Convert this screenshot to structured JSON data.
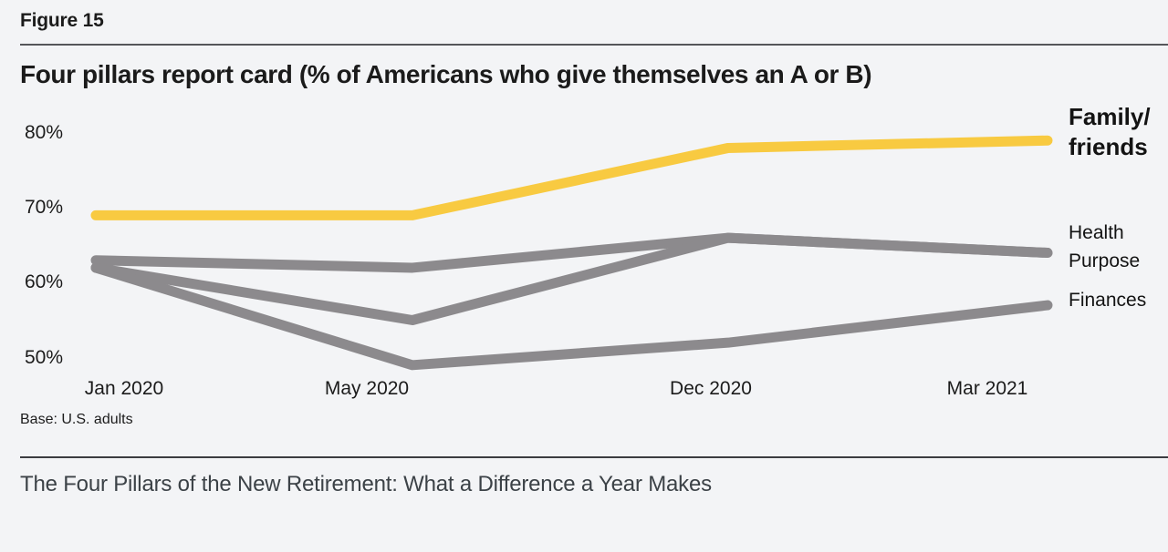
{
  "figure_label": "Figure 15",
  "title": "Four pillars report card (% of Americans who give themselves an A or B)",
  "base_note": "Base: U.S. adults",
  "footer_title": "The Four Pillars of the New Retirement: What a Difference a Year Makes",
  "colors": {
    "accent_yellow": "#F8CA41",
    "line_gray": "#8C8A8D",
    "background": "#F3F4F6",
    "text_dark": "#1B1B1B"
  },
  "chart_data": {
    "type": "line",
    "title": "Four pillars report card (% of Americans who give themselves an A or B)",
    "categories": [
      "Jan 2020",
      "May 2020",
      "Dec 2020",
      "Mar 2021"
    ],
    "series": [
      {
        "name": "Family/friends",
        "values": [
          69,
          69,
          78,
          79
        ],
        "color": "#F8CA41",
        "emphasis": true
      },
      {
        "name": "Health",
        "values": [
          63,
          62,
          66,
          64
        ],
        "color": "#8C8A8D",
        "emphasis": false
      },
      {
        "name": "Purpose",
        "values": [
          62,
          55,
          66,
          64
        ],
        "color": "#8C8A8D",
        "emphasis": false
      },
      {
        "name": "Finances",
        "values": [
          62,
          49,
          52,
          57
        ],
        "color": "#8C8A8D",
        "emphasis": false
      }
    ],
    "yticks": [
      80,
      70,
      60,
      50
    ],
    "ytick_suffix": "%",
    "ylim": [
      46,
      84
    ],
    "grid": false,
    "legend_position": "right",
    "xlabel": "",
    "ylabel": ""
  }
}
